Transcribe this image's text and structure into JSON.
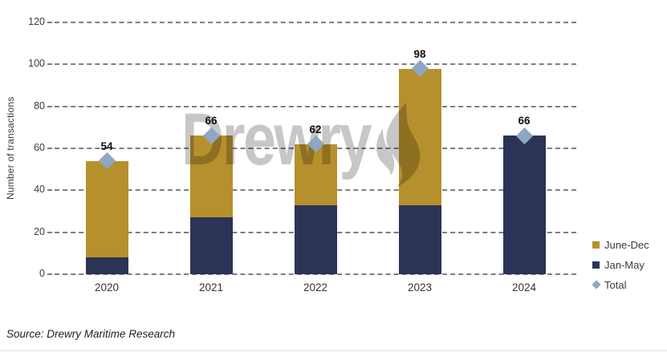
{
  "chart_data": {
    "type": "bar",
    "stacked": true,
    "title": "",
    "ylabel": "Number of transactions",
    "ylim": [
      0,
      120
    ],
    "yticks": [
      0,
      20,
      40,
      60,
      80,
      100,
      120
    ],
    "grid": "horizontal-dashed",
    "legend_position": "bottom-right",
    "categories": [
      "2020",
      "2021",
      "2022",
      "2023",
      "2024"
    ],
    "series": [
      {
        "name": "Jan-May",
        "color": "#2B3456",
        "values": [
          8,
          27,
          33,
          33,
          66
        ]
      },
      {
        "name": "June-Dec",
        "color": "#B6902D",
        "values": [
          46,
          39,
          29,
          65,
          0
        ]
      }
    ],
    "totals": {
      "name": "Total",
      "marker": "diamond",
      "color": "#8FA6C4",
      "values": [
        54,
        66,
        62,
        98,
        66
      ]
    },
    "legend": [
      {
        "label": "June-Dec",
        "swatch": "square",
        "color": "#B6902D"
      },
      {
        "label": "Jan-May",
        "swatch": "square",
        "color": "#2B3456"
      },
      {
        "label": "Total",
        "swatch": "diamond",
        "color": "#8FA6C4"
      }
    ]
  },
  "watermark": {
    "text": "Drewry"
  },
  "source": {
    "text": "Source: Drewry Maritime Research"
  }
}
